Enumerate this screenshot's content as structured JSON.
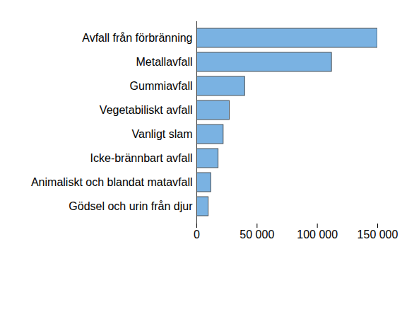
{
  "chart_data": {
    "type": "bar",
    "orientation": "horizontal",
    "categories": [
      "Avfall från förbränning",
      "Metallavfall",
      "Gummiavfall",
      "Vegetabiliskt avfall",
      "Vanligt slam",
      "Icke-brännbart avfall",
      "Animaliskt och blandat matavfall",
      "Gödsel och urin från djur"
    ],
    "values": [
      150000,
      112000,
      40000,
      27300,
      22200,
      18000,
      11900,
      9800
    ],
    "color": "#7ab2e2",
    "xlim": [
      0,
      150000
    ],
    "xticks": [
      0,
      {
        "value": 50000,
        "label": "50 000"
      },
      {
        "value": 100000,
        "label": "100 000"
      },
      {
        "value": 150000,
        "label": "150 000"
      }
    ],
    "grid": false,
    "data_labels": false
  }
}
